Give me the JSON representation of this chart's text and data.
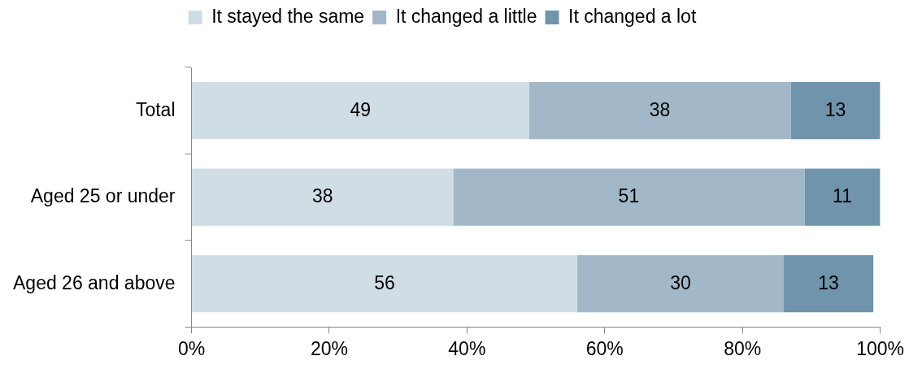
{
  "chart_data": {
    "type": "bar",
    "orientation": "horizontal",
    "stacked": true,
    "categories": [
      "Total",
      "Aged 25 or under",
      "Aged 26 and above"
    ],
    "series": [
      {
        "name": "It stayed the same",
        "color": "#d0dde5",
        "values": [
          49,
          38,
          56
        ]
      },
      {
        "name": "It changed a little",
        "color": "#a2b8c8",
        "values": [
          38,
          51,
          30
        ]
      },
      {
        "name": "It changed a lot",
        "color": "#7094ab",
        "values": [
          13,
          11,
          13
        ]
      }
    ],
    "xlim": [
      0,
      100
    ],
    "xticks": [
      {
        "value": 0,
        "label": "0%"
      },
      {
        "value": 20,
        "label": "20%"
      },
      {
        "value": 40,
        "label": "40%"
      },
      {
        "value": 60,
        "label": "60%"
      },
      {
        "value": 80,
        "label": "80%"
      },
      {
        "value": 100,
        "label": "100%"
      }
    ],
    "data_labels": true,
    "legend": "top",
    "grid": false
  }
}
